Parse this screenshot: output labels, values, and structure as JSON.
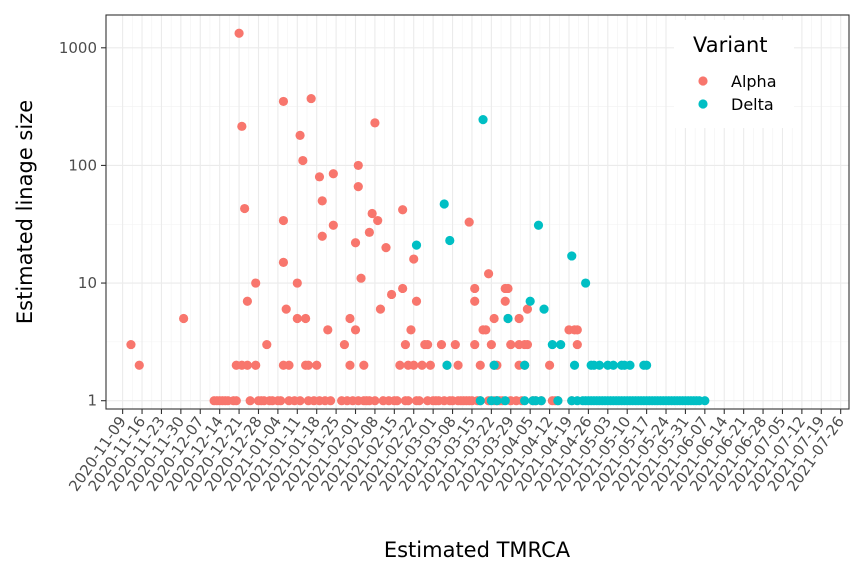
{
  "chart_data": {
    "type": "scatter",
    "title": "",
    "xlabel": "Estimated TMRCA",
    "ylabel": "Estimated linage size",
    "yscale": "log10",
    "ylim": [
      0.85,
      1900
    ],
    "xlim": [
      "2020-11-03",
      "2021-07-29"
    ],
    "x_ticks": [
      "2020-11-09",
      "2020-11-16",
      "2020-11-23",
      "2020-11-30",
      "2020-12-07",
      "2020-12-14",
      "2020-12-21",
      "2020-12-28",
      "2021-01-04",
      "2021-01-11",
      "2021-01-18",
      "2021-01-25",
      "2021-02-01",
      "2021-02-08",
      "2021-02-15",
      "2021-02-22",
      "2021-03-01",
      "2021-03-08",
      "2021-03-15",
      "2021-03-22",
      "2021-03-29",
      "2021-04-05",
      "2021-04-12",
      "2021-04-19",
      "2021-04-26",
      "2021-05-03",
      "2021-05-10",
      "2021-05-17",
      "2021-05-24",
      "2021-05-31",
      "2021-06-07",
      "2021-06-14",
      "2021-06-21",
      "2021-06-28",
      "2021-07-05",
      "2021-07-12",
      "2021-07-19",
      "2021-07-26"
    ],
    "y_ticks": [
      1,
      10,
      100,
      1000
    ],
    "y_tick_labels": [
      "1",
      "10",
      "100",
      "1000"
    ],
    "grid": true,
    "legend": {
      "title": "Variant",
      "position": "top-right"
    },
    "series": [
      {
        "name": "Alpha",
        "color": "#F8766D",
        "points": [
          [
            "2020-11-12",
            3
          ],
          [
            "2020-11-15",
            2
          ],
          [
            "2020-12-01",
            5
          ],
          [
            "2020-12-12",
            1
          ],
          [
            "2020-12-13",
            1
          ],
          [
            "2020-12-14",
            1
          ],
          [
            "2020-12-15",
            1
          ],
          [
            "2020-12-16",
            1
          ],
          [
            "2020-12-17",
            1
          ],
          [
            "2020-12-19",
            1
          ],
          [
            "2020-12-20",
            1
          ],
          [
            "2020-12-20",
            2
          ],
          [
            "2020-12-21",
            1330
          ],
          [
            "2020-12-22",
            215
          ],
          [
            "2020-12-23",
            43
          ],
          [
            "2020-12-22",
            2
          ],
          [
            "2020-12-24",
            7
          ],
          [
            "2020-12-24",
            2
          ],
          [
            "2020-12-25",
            1
          ],
          [
            "2020-12-27",
            10
          ],
          [
            "2020-12-27",
            2
          ],
          [
            "2020-12-28",
            1
          ],
          [
            "2020-12-29",
            1
          ],
          [
            "2020-12-30",
            1
          ],
          [
            "2020-12-31",
            3
          ],
          [
            "2021-01-01",
            1
          ],
          [
            "2021-01-02",
            1
          ],
          [
            "2021-01-04",
            1
          ],
          [
            "2021-01-05",
            1
          ],
          [
            "2021-01-06",
            350
          ],
          [
            "2021-01-06",
            34
          ],
          [
            "2021-01-06",
            15
          ],
          [
            "2021-01-06",
            2
          ],
          [
            "2021-01-07",
            6
          ],
          [
            "2021-01-08",
            2
          ],
          [
            "2021-01-08",
            1
          ],
          [
            "2021-01-10",
            1
          ],
          [
            "2021-01-11",
            10
          ],
          [
            "2021-01-11",
            5
          ],
          [
            "2021-01-12",
            180
          ],
          [
            "2021-01-12",
            1
          ],
          [
            "2021-01-13",
            110
          ],
          [
            "2021-01-14",
            2
          ],
          [
            "2021-01-14",
            5
          ],
          [
            "2021-01-15",
            2
          ],
          [
            "2021-01-15",
            1
          ],
          [
            "2021-01-16",
            370
          ],
          [
            "2021-01-17",
            1
          ],
          [
            "2021-01-18",
            2
          ],
          [
            "2021-01-19",
            80
          ],
          [
            "2021-01-19",
            1
          ],
          [
            "2021-01-20",
            50
          ],
          [
            "2021-01-20",
            25
          ],
          [
            "2021-01-21",
            1
          ],
          [
            "2021-01-22",
            4
          ],
          [
            "2021-01-23",
            1
          ],
          [
            "2021-01-24",
            85
          ],
          [
            "2021-01-24",
            31
          ],
          [
            "2021-01-27",
            1
          ],
          [
            "2021-01-28",
            3
          ],
          [
            "2021-01-29",
            1
          ],
          [
            "2021-01-30",
            5
          ],
          [
            "2021-01-30",
            2
          ],
          [
            "2021-01-31",
            1
          ],
          [
            "2021-02-01",
            4
          ],
          [
            "2021-02-01",
            22
          ],
          [
            "2021-02-02",
            1
          ],
          [
            "2021-02-02",
            100
          ],
          [
            "2021-02-02",
            66
          ],
          [
            "2021-02-03",
            11
          ],
          [
            "2021-02-04",
            2
          ],
          [
            "2021-02-04",
            1
          ],
          [
            "2021-02-05",
            1
          ],
          [
            "2021-02-06",
            27
          ],
          [
            "2021-02-06",
            1
          ],
          [
            "2021-02-07",
            39
          ],
          [
            "2021-02-08",
            230
          ],
          [
            "2021-02-08",
            1
          ],
          [
            "2021-02-09",
            34
          ],
          [
            "2021-02-10",
            6
          ],
          [
            "2021-02-11",
            1
          ],
          [
            "2021-02-12",
            20
          ],
          [
            "2021-02-13",
            1
          ],
          [
            "2021-02-14",
            8
          ],
          [
            "2021-02-15",
            1
          ],
          [
            "2021-02-16",
            1
          ],
          [
            "2021-02-17",
            2
          ],
          [
            "2021-02-18",
            42
          ],
          [
            "2021-02-18",
            9
          ],
          [
            "2021-02-19",
            3
          ],
          [
            "2021-02-19",
            1
          ],
          [
            "2021-02-20",
            2
          ],
          [
            "2021-02-20",
            1
          ],
          [
            "2021-02-21",
            4
          ],
          [
            "2021-02-22",
            16
          ],
          [
            "2021-02-22",
            2
          ],
          [
            "2021-02-23",
            7
          ],
          [
            "2021-02-23",
            1
          ],
          [
            "2021-02-24",
            1
          ],
          [
            "2021-02-25",
            2
          ],
          [
            "2021-02-26",
            3
          ],
          [
            "2021-02-27",
            3
          ],
          [
            "2021-02-27",
            1
          ],
          [
            "2021-02-28",
            2
          ],
          [
            "2021-03-01",
            1
          ],
          [
            "2021-03-02",
            1
          ],
          [
            "2021-03-03",
            1
          ],
          [
            "2021-03-04",
            3
          ],
          [
            "2021-03-05",
            1
          ],
          [
            "2021-03-06",
            2
          ],
          [
            "2021-03-07",
            1
          ],
          [
            "2021-03-08",
            1
          ],
          [
            "2021-03-09",
            3
          ],
          [
            "2021-03-10",
            2
          ],
          [
            "2021-03-10",
            1
          ],
          [
            "2021-03-11",
            1
          ],
          [
            "2021-03-12",
            1
          ],
          [
            "2021-03-13",
            1
          ],
          [
            "2021-03-14",
            33
          ],
          [
            "2021-03-14",
            1
          ],
          [
            "2021-03-15",
            1
          ],
          [
            "2021-03-16",
            9
          ],
          [
            "2021-03-16",
            7
          ],
          [
            "2021-03-16",
            3
          ],
          [
            "2021-03-17",
            1
          ],
          [
            "2021-03-18",
            2
          ],
          [
            "2021-03-18",
            1
          ],
          [
            "2021-03-19",
            4
          ],
          [
            "2021-03-20",
            4
          ],
          [
            "2021-03-21",
            12
          ],
          [
            "2021-03-21",
            1
          ],
          [
            "2021-03-22",
            3
          ],
          [
            "2021-03-23",
            5
          ],
          [
            "2021-03-23",
            2
          ],
          [
            "2021-03-23",
            1
          ],
          [
            "2021-03-24",
            2
          ],
          [
            "2021-03-24",
            1
          ],
          [
            "2021-03-25",
            1
          ],
          [
            "2021-03-26",
            1
          ],
          [
            "2021-03-27",
            9
          ],
          [
            "2021-03-27",
            7
          ],
          [
            "2021-03-28",
            9
          ],
          [
            "2021-03-28",
            5
          ],
          [
            "2021-03-29",
            3
          ],
          [
            "2021-03-29",
            1
          ],
          [
            "2021-03-31",
            1
          ],
          [
            "2021-04-01",
            5
          ],
          [
            "2021-04-01",
            3
          ],
          [
            "2021-04-01",
            2
          ],
          [
            "2021-04-02",
            1
          ],
          [
            "2021-04-03",
            3
          ],
          [
            "2021-04-03",
            2
          ],
          [
            "2021-04-04",
            6
          ],
          [
            "2021-04-04",
            3
          ],
          [
            "2021-04-06",
            1
          ],
          [
            "2021-04-07",
            1
          ],
          [
            "2021-04-09",
            1
          ],
          [
            "2021-04-12",
            2
          ],
          [
            "2021-04-13",
            1
          ],
          [
            "2021-04-14",
            1
          ],
          [
            "2021-04-15",
            1
          ],
          [
            "2021-04-19",
            4
          ],
          [
            "2021-04-20",
            1
          ],
          [
            "2021-04-21",
            4
          ],
          [
            "2021-04-22",
            4
          ],
          [
            "2021-04-22",
            3
          ]
        ]
      },
      {
        "name": "Delta",
        "color": "#00BFC4",
        "points": [
          [
            "2021-02-23",
            21
          ],
          [
            "2021-03-05",
            47
          ],
          [
            "2021-03-07",
            23
          ],
          [
            "2021-03-06",
            2
          ],
          [
            "2021-03-19",
            245
          ],
          [
            "2021-03-23",
            2
          ],
          [
            "2021-03-24",
            1
          ],
          [
            "2021-03-28",
            5
          ],
          [
            "2021-03-27",
            1
          ],
          [
            "2021-03-18",
            1
          ],
          [
            "2021-03-22",
            1
          ],
          [
            "2021-04-03",
            2
          ],
          [
            "2021-04-05",
            7
          ],
          [
            "2021-04-03",
            1
          ],
          [
            "2021-04-06",
            1
          ],
          [
            "2021-04-07",
            1
          ],
          [
            "2021-04-08",
            31
          ],
          [
            "2021-04-09",
            1
          ],
          [
            "2021-04-10",
            6
          ],
          [
            "2021-04-13",
            3
          ],
          [
            "2021-04-15",
            1
          ],
          [
            "2021-04-16",
            3
          ],
          [
            "2021-04-20",
            17
          ],
          [
            "2021-04-20",
            1
          ],
          [
            "2021-04-21",
            2
          ],
          [
            "2021-04-22",
            1
          ],
          [
            "2021-04-24",
            1
          ],
          [
            "2021-04-25",
            10
          ],
          [
            "2021-04-25",
            1
          ],
          [
            "2021-04-26",
            1
          ],
          [
            "2021-04-27",
            2
          ],
          [
            "2021-04-27",
            1
          ],
          [
            "2021-04-28",
            2
          ],
          [
            "2021-04-28",
            1
          ],
          [
            "2021-04-29",
            1
          ],
          [
            "2021-04-30",
            2
          ],
          [
            "2021-04-30",
            1
          ],
          [
            "2021-05-01",
            1
          ],
          [
            "2021-05-02",
            1
          ],
          [
            "2021-05-03",
            2
          ],
          [
            "2021-05-03",
            1
          ],
          [
            "2021-05-04",
            1
          ],
          [
            "2021-05-05",
            2
          ],
          [
            "2021-05-05",
            1
          ],
          [
            "2021-05-06",
            1
          ],
          [
            "2021-05-07",
            1
          ],
          [
            "2021-05-08",
            2
          ],
          [
            "2021-05-08",
            1
          ],
          [
            "2021-05-09",
            2
          ],
          [
            "2021-05-09",
            1
          ],
          [
            "2021-05-10",
            1
          ],
          [
            "2021-05-11",
            2
          ],
          [
            "2021-05-11",
            1
          ],
          [
            "2021-05-12",
            1
          ],
          [
            "2021-05-13",
            1
          ],
          [
            "2021-05-14",
            1
          ],
          [
            "2021-05-15",
            1
          ],
          [
            "2021-05-16",
            2
          ],
          [
            "2021-05-16",
            1
          ],
          [
            "2021-05-17",
            2
          ],
          [
            "2021-05-17",
            1
          ],
          [
            "2021-05-18",
            1
          ],
          [
            "2021-05-19",
            1
          ],
          [
            "2021-05-20",
            1
          ],
          [
            "2021-05-21",
            1
          ],
          [
            "2021-05-22",
            1
          ],
          [
            "2021-05-23",
            1
          ],
          [
            "2021-05-24",
            1
          ],
          [
            "2021-05-25",
            1
          ],
          [
            "2021-05-26",
            1
          ],
          [
            "2021-05-27",
            1
          ],
          [
            "2021-05-28",
            1
          ],
          [
            "2021-05-29",
            1
          ],
          [
            "2021-05-30",
            1
          ],
          [
            "2021-05-31",
            1
          ],
          [
            "2021-06-01",
            1
          ],
          [
            "2021-06-02",
            1
          ],
          [
            "2021-06-03",
            1
          ],
          [
            "2021-06-04",
            1
          ],
          [
            "2021-06-05",
            1
          ],
          [
            "2021-06-07",
            1
          ]
        ]
      }
    ]
  }
}
